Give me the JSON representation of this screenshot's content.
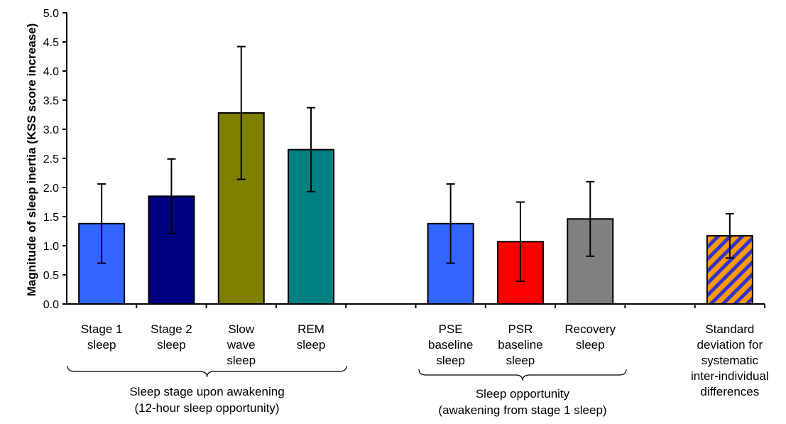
{
  "chart_data": {
    "type": "bar",
    "title": "",
    "ylabel": "Magnitude of sleep inertia (KSS score increase)",
    "ylim": [
      0,
      5
    ],
    "yticks": [
      "0.0",
      "0.5",
      "1.0",
      "1.5",
      "2.0",
      "2.5",
      "3.0",
      "3.5",
      "4.0",
      "4.5",
      "5.0"
    ],
    "grid": false,
    "legend": "none",
    "bars": [
      {
        "label": [
          "Stage 1",
          "sleep"
        ],
        "value": 1.38,
        "err_low": 0.7,
        "err_high": 2.06,
        "color": "#3366FF",
        "pattern": "solid"
      },
      {
        "label": [
          "Stage 2",
          "sleep"
        ],
        "value": 1.85,
        "err_low": 1.21,
        "err_high": 2.49,
        "color": "#000080",
        "pattern": "solid"
      },
      {
        "label": [
          "Slow",
          "wave",
          "sleep"
        ],
        "value": 3.28,
        "err_low": 2.14,
        "err_high": 4.42,
        "color": "#808000",
        "pattern": "solid"
      },
      {
        "label": [
          "REM",
          "sleep"
        ],
        "value": 2.65,
        "err_low": 1.93,
        "err_high": 3.37,
        "color": "#008080",
        "pattern": "solid"
      },
      {
        "label": [
          "PSE",
          "baseline",
          "sleep"
        ],
        "value": 1.38,
        "err_low": 0.7,
        "err_high": 2.06,
        "color": "#3366FF",
        "pattern": "solid"
      },
      {
        "label": [
          "PSR",
          "baseline",
          "sleep"
        ],
        "value": 1.07,
        "err_low": 0.39,
        "err_high": 1.75,
        "color": "#FF0000",
        "pattern": "solid"
      },
      {
        "label": [
          "Recovery",
          "sleep"
        ],
        "value": 1.46,
        "err_low": 0.82,
        "err_high": 2.1,
        "color": "#808080",
        "pattern": "solid"
      },
      {
        "label": [
          "Standard",
          "deviation for",
          "systematic",
          "inter-individual",
          "differences"
        ],
        "value": 1.17,
        "err_low": 0.79,
        "err_high": 1.55,
        "color": "#FF9900",
        "pattern": "diagonal-stripes",
        "stripe_color": "#3333CC"
      }
    ],
    "groups": [
      {
        "label": [
          "Sleep stage upon awakening",
          "(12-hour sleep opportunity)"
        ]
      },
      {
        "label": [
          "Sleep opportunity",
          "(awakening from stage 1 sleep)"
        ]
      }
    ]
  }
}
